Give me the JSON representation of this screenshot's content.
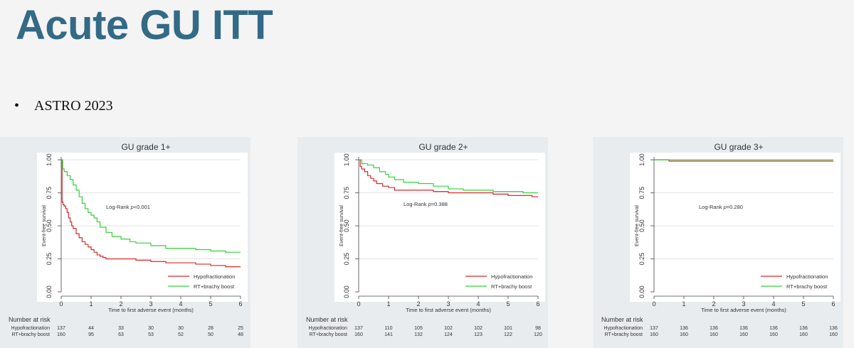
{
  "slide": {
    "title": "Acute GU ITT",
    "bullet": "ASTRO 2023"
  },
  "chart_data": [
    {
      "type": "line",
      "title": "GU grade 1+",
      "xlabel": "Time to first adverse event (months)",
      "ylabel": "Event-free survival",
      "xlim": [
        0,
        6
      ],
      "ylim": [
        0,
        1
      ],
      "x_ticks": [
        "0",
        "1",
        "2",
        "3",
        "4",
        "5",
        "6"
      ],
      "y_ticks": [
        "0.00",
        "0.25",
        "0.50",
        "0.75",
        "1.00"
      ],
      "grid": "horizontal",
      "legend_position": "bottom-right",
      "annotation": {
        "prefix": "Log-Rank ",
        "p_symbol": "p",
        "suffix": "<0.001",
        "x": 1.5,
        "y": 0.63
      },
      "series": [
        {
          "name": "Hypofractionation",
          "color": "#d42a2a",
          "x": [
            0,
            0.03,
            0.06,
            0.1,
            0.15,
            0.2,
            0.25,
            0.3,
            0.35,
            0.4,
            0.5,
            0.6,
            0.7,
            0.8,
            0.9,
            1.0,
            1.1,
            1.2,
            1.3,
            1.4,
            1.5,
            1.7,
            2.0,
            2.5,
            3.0,
            3.5,
            4.0,
            4.5,
            5.0,
            5.5,
            6.0
          ],
          "y": [
            1.0,
            0.68,
            0.66,
            0.65,
            0.63,
            0.6,
            0.56,
            0.53,
            0.5,
            0.48,
            0.44,
            0.41,
            0.38,
            0.36,
            0.34,
            0.32,
            0.3,
            0.28,
            0.27,
            0.26,
            0.25,
            0.25,
            0.25,
            0.24,
            0.23,
            0.22,
            0.22,
            0.21,
            0.2,
            0.19,
            0.19
          ]
        },
        {
          "name": "RT+brachy boost",
          "color": "#33d13d",
          "x": [
            0,
            0.05,
            0.1,
            0.2,
            0.3,
            0.4,
            0.5,
            0.6,
            0.7,
            0.8,
            0.9,
            1.0,
            1.1,
            1.2,
            1.3,
            1.5,
            1.7,
            2.0,
            2.3,
            2.5,
            3.0,
            3.5,
            4.0,
            4.5,
            5.0,
            5.5,
            6.0
          ],
          "y": [
            1.0,
            0.93,
            0.91,
            0.88,
            0.85,
            0.81,
            0.77,
            0.72,
            0.67,
            0.63,
            0.6,
            0.58,
            0.56,
            0.53,
            0.49,
            0.45,
            0.42,
            0.4,
            0.38,
            0.37,
            0.35,
            0.33,
            0.33,
            0.32,
            0.31,
            0.3,
            0.3
          ]
        }
      ],
      "risk_table": {
        "header": "Number at risk",
        "rows": [
          {
            "label": "Hypofractionation",
            "values": [
              "137",
              "44",
              "33",
              "30",
              "30",
              "28",
              "25"
            ]
          },
          {
            "label": "RT+brachy boost",
            "values": [
              "160",
              "95",
              "63",
              "53",
              "52",
              "50",
              "48"
            ]
          }
        ]
      }
    },
    {
      "type": "line",
      "title": "GU grade 2+",
      "xlabel": "Time to first adverse event (months)",
      "ylabel": "Event-free survival",
      "xlim": [
        0,
        6
      ],
      "ylim": [
        0,
        1
      ],
      "x_ticks": [
        "0",
        "1",
        "2",
        "3",
        "4",
        "5",
        "6"
      ],
      "y_ticks": [
        "0.00",
        "0.25",
        "0.50",
        "0.75",
        "1.00"
      ],
      "grid": "horizontal",
      "legend_position": "bottom-right",
      "annotation": {
        "prefix": "Log-Rank ",
        "p_symbol": "p",
        "suffix": "=0.388",
        "x": 1.5,
        "y": 0.65
      },
      "series": [
        {
          "name": "Hypofractionation",
          "color": "#d42a2a",
          "x": [
            0,
            0.05,
            0.1,
            0.2,
            0.3,
            0.4,
            0.5,
            0.6,
            0.8,
            1.0,
            1.2,
            1.5,
            2.0,
            2.5,
            3.0,
            4.0,
            4.5,
            5.0,
            5.5,
            5.8,
            6.0
          ],
          "y": [
            1.0,
            0.95,
            0.93,
            0.91,
            0.88,
            0.86,
            0.84,
            0.82,
            0.8,
            0.79,
            0.77,
            0.77,
            0.77,
            0.76,
            0.75,
            0.75,
            0.74,
            0.73,
            0.73,
            0.72,
            0.72
          ]
        },
        {
          "name": "RT+brachy boost",
          "color": "#33d13d",
          "x": [
            0,
            0.1,
            0.3,
            0.5,
            0.7,
            0.9,
            1.0,
            1.2,
            1.5,
            2.0,
            2.5,
            3.0,
            3.5,
            4.0,
            4.5,
            5.0,
            5.5,
            6.0
          ],
          "y": [
            1.0,
            0.97,
            0.96,
            0.94,
            0.91,
            0.89,
            0.87,
            0.85,
            0.83,
            0.82,
            0.8,
            0.78,
            0.77,
            0.77,
            0.76,
            0.76,
            0.75,
            0.75
          ]
        }
      ],
      "risk_table": {
        "header": "Number at risk",
        "rows": [
          {
            "label": "Hypofractionation",
            "values": [
              "137",
              "110",
              "105",
              "102",
              "102",
              "101",
              "98"
            ]
          },
          {
            "label": "RT+brachy boost",
            "values": [
              "160",
              "141",
              "132",
              "124",
              "123",
              "122",
              "120"
            ]
          }
        ]
      }
    },
    {
      "type": "line",
      "title": "GU grade 3+",
      "xlabel": "Time to first adverse event (months)",
      "ylabel": "Event-free survival",
      "xlim": [
        0,
        6
      ],
      "ylim": [
        0,
        1
      ],
      "x_ticks": [
        "0",
        "1",
        "2",
        "3",
        "4",
        "5",
        "6"
      ],
      "y_ticks": [
        "0.00",
        "0.25",
        "0.50",
        "0.75",
        "1.00"
      ],
      "grid": "horizontal",
      "legend_position": "bottom-right",
      "annotation": {
        "prefix": "Log-Rank ",
        "p_symbol": "p",
        "suffix": "=0.280",
        "x": 1.5,
        "y": 0.63
      },
      "series": [
        {
          "name": "Hypofractionation",
          "color": "#d42a2a",
          "x": [
            0,
            0.5,
            0.5,
            6.0
          ],
          "y": [
            1.0,
            1.0,
            0.99,
            0.99
          ]
        },
        {
          "name": "RT+brachy boost",
          "color": "#33d13d",
          "x": [
            0,
            6.0
          ],
          "y": [
            1.0,
            1.0
          ]
        }
      ],
      "risk_table": {
        "header": "Number at risk",
        "rows": [
          {
            "label": "Hypofractionation",
            "values": [
              "137",
              "136",
              "136",
              "136",
              "136",
              "136",
              "136"
            ]
          },
          {
            "label": "RT+brachy boost",
            "values": [
              "160",
              "160",
              "160",
              "160",
              "160",
              "160",
              "160"
            ]
          }
        ]
      }
    }
  ]
}
